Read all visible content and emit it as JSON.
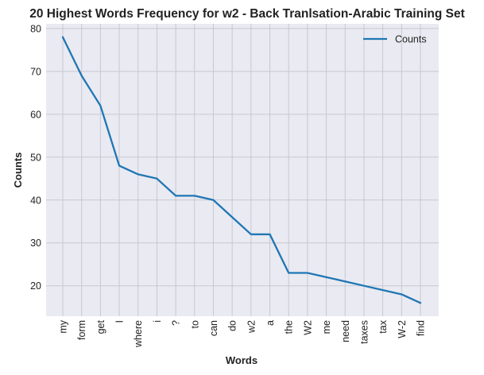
{
  "chart_data": {
    "type": "line",
    "title": "20 Highest Words Frequency for w2 - Back Tranlsation-Arabic Training Set",
    "xlabel": "Words",
    "ylabel": "Counts",
    "categories": [
      "my",
      "form",
      "get",
      "I",
      "where",
      "i",
      "?",
      "to",
      "can",
      "do",
      "w2",
      "a",
      "the",
      "W2",
      "me",
      "need",
      "taxes",
      "tax",
      "W-2",
      "find"
    ],
    "series": [
      {
        "name": "Counts",
        "values": [
          78,
          69,
          62,
          48,
          46,
          45,
          41,
          41,
          40,
          36,
          32,
          32,
          23,
          23,
          22,
          21,
          20,
          19,
          18,
          16
        ]
      }
    ],
    "yticks": [
      20,
      30,
      40,
      50,
      60,
      70,
      80
    ],
    "ylim": [
      12.9,
      81.1
    ],
    "grid": true,
    "legend_position": "top-right",
    "colors": {
      "line": "#1f77b4",
      "plot_background": "#eaeaf2",
      "grid": "#c8c8d0"
    }
  }
}
